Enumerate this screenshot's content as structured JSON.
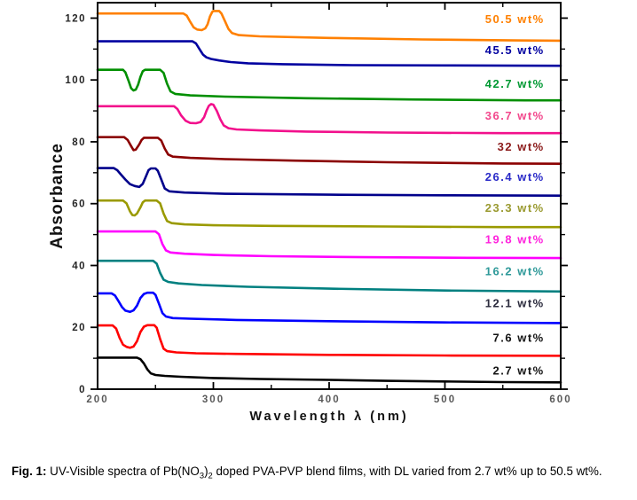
{
  "figure": {
    "caption": {
      "prefix": "Fig. 1:",
      "segments": [
        {
          "text": " UV-Visible spectra of Pb(NO"
        },
        {
          "text": "3",
          "sub": true
        },
        {
          "text": ")"
        },
        {
          "text": "2",
          "sub": true
        },
        {
          "text": " doped PVA-PVP blend films, with DL varied from 2.7 wt% up to 50.5 wt%."
        }
      ]
    }
  },
  "chart_data": {
    "type": "line",
    "title": "",
    "xlabel": "Wavelength λ (nm)",
    "ylabel": "Absorbance",
    "xlim": [
      200,
      600
    ],
    "ylim": [
      0,
      125
    ],
    "grid": false,
    "legend_position": "labels-right-inside",
    "x_ticks_major": [
      200,
      300,
      400,
      500,
      600
    ],
    "x_ticks_minor": [
      250,
      350,
      450,
      550
    ],
    "y_ticks_major": [
      0,
      20,
      40,
      60,
      80,
      100,
      120
    ],
    "y_ticks_minor": [
      10,
      30,
      50,
      70,
      90,
      110
    ],
    "frame_color": "#000000",
    "series": [
      {
        "name": "50.5 wt%",
        "color": "#FF8000",
        "label_color": "#FF8000",
        "label_y": 119.7,
        "points": [
          [
            200,
            121.5
          ],
          [
            274,
            121.5
          ],
          [
            277,
            120.8
          ],
          [
            280,
            118.8
          ],
          [
            283,
            117.0
          ],
          [
            286,
            116.3
          ],
          [
            290,
            116.1
          ],
          [
            293,
            116.7
          ],
          [
            295,
            118.0
          ],
          [
            297,
            120.5
          ],
          [
            299,
            122.0
          ],
          [
            300,
            122.3
          ],
          [
            305,
            122.3
          ],
          [
            307,
            121.5
          ],
          [
            310,
            119.0
          ],
          [
            313,
            116.5
          ],
          [
            316,
            115.2
          ],
          [
            322,
            114.5
          ],
          [
            340,
            114.1
          ],
          [
            400,
            113.6
          ],
          [
            480,
            113.1
          ],
          [
            560,
            112.8
          ],
          [
            600,
            112.7
          ]
        ]
      },
      {
        "name": "45.5 wt%",
        "color": "#0000A0",
        "label_color": "#0000A0",
        "label_y": 109.7,
        "points": [
          [
            200,
            112.5
          ],
          [
            282,
            112.5
          ],
          [
            285,
            111.8
          ],
          [
            288,
            110.0
          ],
          [
            291,
            108.2
          ],
          [
            294,
            107.3
          ],
          [
            298,
            106.8
          ],
          [
            305,
            106.3
          ],
          [
            315,
            105.8
          ],
          [
            330,
            105.4
          ],
          [
            360,
            105.1
          ],
          [
            420,
            104.8
          ],
          [
            500,
            104.7
          ],
          [
            600,
            104.6
          ]
        ]
      },
      {
        "name": "42.7 wt%",
        "color": "#008F00",
        "label_color": "#009933",
        "label_y": 98.8,
        "points": [
          [
            200,
            103.3
          ],
          [
            222,
            103.3
          ],
          [
            224,
            102.5
          ],
          [
            227,
            99.5
          ],
          [
            229,
            97.3
          ],
          [
            231,
            96.6
          ],
          [
            233,
            96.9
          ],
          [
            235,
            98.5
          ],
          [
            237,
            101.0
          ],
          [
            239,
            102.8
          ],
          [
            241,
            103.3
          ],
          [
            254,
            103.3
          ],
          [
            257,
            102.3
          ],
          [
            260,
            98.8
          ],
          [
            263,
            96.3
          ],
          [
            267,
            95.5
          ],
          [
            280,
            95.0
          ],
          [
            310,
            94.6
          ],
          [
            380,
            94.1
          ],
          [
            470,
            93.7
          ],
          [
            570,
            93.4
          ],
          [
            600,
            93.4
          ]
        ]
      },
      {
        "name": "36.7 wt%",
        "color": "#F2108C",
        "label_color": "#F2478C",
        "label_y": 88.4,
        "points": [
          [
            200,
            91.5
          ],
          [
            266,
            91.5
          ],
          [
            269,
            90.6
          ],
          [
            272,
            88.6
          ],
          [
            276,
            86.8
          ],
          [
            280,
            86.1
          ],
          [
            285,
            86.0
          ],
          [
            289,
            86.4
          ],
          [
            292,
            88.0
          ],
          [
            294,
            90.0
          ],
          [
            296,
            91.6
          ],
          [
            298,
            92.2
          ],
          [
            300,
            92.0
          ],
          [
            303,
            90.0
          ],
          [
            306,
            87.3
          ],
          [
            309,
            85.3
          ],
          [
            313,
            84.4
          ],
          [
            320,
            84.0
          ],
          [
            340,
            83.7
          ],
          [
            380,
            83.3
          ],
          [
            450,
            83.0
          ],
          [
            550,
            82.8
          ],
          [
            600,
            82.8
          ]
        ]
      },
      {
        "name": "32 wt%",
        "color": "#8B0000",
        "label_color": "#8B1A1A",
        "label_y": 78.4,
        "points": [
          [
            200,
            81.5
          ],
          [
            223,
            81.5
          ],
          [
            226,
            80.6
          ],
          [
            229,
            78.6
          ],
          [
            231,
            77.3
          ],
          [
            233,
            77.5
          ],
          [
            236,
            79.2
          ],
          [
            238,
            80.6
          ],
          [
            240,
            81.3
          ],
          [
            252,
            81.3
          ],
          [
            255,
            80.4
          ],
          [
            258,
            77.8
          ],
          [
            261,
            75.9
          ],
          [
            265,
            75.2
          ],
          [
            280,
            74.8
          ],
          [
            310,
            74.4
          ],
          [
            370,
            73.9
          ],
          [
            450,
            73.4
          ],
          [
            550,
            73.0
          ],
          [
            600,
            72.9
          ]
        ]
      },
      {
        "name": "26.4 wt%",
        "color": "#00008B",
        "label_color": "#2A2AC8",
        "label_y": 68.6,
        "points": [
          [
            200,
            71.5
          ],
          [
            214,
            71.5
          ],
          [
            217,
            70.8
          ],
          [
            220,
            69.5
          ],
          [
            224,
            67.8
          ],
          [
            228,
            66.3
          ],
          [
            232,
            65.7
          ],
          [
            236,
            65.4
          ],
          [
            239,
            66.4
          ],
          [
            242,
            69.0
          ],
          [
            244,
            70.8
          ],
          [
            246,
            71.4
          ],
          [
            250,
            71.4
          ],
          [
            252,
            70.6
          ],
          [
            255,
            67.8
          ],
          [
            258,
            64.9
          ],
          [
            262,
            64.0
          ],
          [
            275,
            63.6
          ],
          [
            310,
            63.2
          ],
          [
            400,
            62.9
          ],
          [
            500,
            62.7
          ],
          [
            600,
            62.6
          ]
        ]
      },
      {
        "name": "23.3 wt%",
        "color": "#9A9A00",
        "label_color": "#9A9A30",
        "label_y": 58.6,
        "points": [
          [
            200,
            61.0
          ],
          [
            222,
            61.0
          ],
          [
            225,
            60.1
          ],
          [
            228,
            57.5
          ],
          [
            230,
            56.3
          ],
          [
            232,
            56.2
          ],
          [
            234,
            56.8
          ],
          [
            237,
            58.8
          ],
          [
            239,
            60.4
          ],
          [
            241,
            61.0
          ],
          [
            251,
            61.0
          ],
          [
            254,
            60.1
          ],
          [
            257,
            56.8
          ],
          [
            260,
            54.4
          ],
          [
            264,
            53.7
          ],
          [
            275,
            53.3
          ],
          [
            300,
            53.0
          ],
          [
            350,
            52.8
          ],
          [
            450,
            52.6
          ],
          [
            550,
            52.4
          ],
          [
            600,
            52.4
          ]
        ]
      },
      {
        "name": "19.8 wt%",
        "color": "#FF00FF",
        "label_color": "#FF22DD",
        "label_y": 48.5,
        "points": [
          [
            200,
            51.0
          ],
          [
            250,
            51.0
          ],
          [
            253,
            50.1
          ],
          [
            256,
            46.9
          ],
          [
            259,
            44.9
          ],
          [
            263,
            44.2
          ],
          [
            275,
            43.8
          ],
          [
            300,
            43.4
          ],
          [
            350,
            43.0
          ],
          [
            430,
            42.7
          ],
          [
            520,
            42.5
          ],
          [
            600,
            42.4
          ]
        ]
      },
      {
        "name": "16.2 wt%",
        "color": "#008080",
        "label_color": "#2E9999",
        "label_y": 38.2,
        "points": [
          [
            200,
            41.5
          ],
          [
            248,
            41.5
          ],
          [
            251,
            40.6
          ],
          [
            254,
            37.6
          ],
          [
            257,
            35.4
          ],
          [
            261,
            34.7
          ],
          [
            270,
            34.2
          ],
          [
            290,
            33.7
          ],
          [
            330,
            33.1
          ],
          [
            400,
            32.5
          ],
          [
            500,
            31.9
          ],
          [
            600,
            31.6
          ]
        ]
      },
      {
        "name": "12.1 wt%",
        "color": "#0000FF",
        "label_color": "#2B2B3D",
        "label_y": 27.8,
        "points": [
          [
            200,
            31.0
          ],
          [
            212,
            31.0
          ],
          [
            215,
            30.3
          ],
          [
            218,
            28.5
          ],
          [
            221,
            26.6
          ],
          [
            224,
            25.4
          ],
          [
            228,
            25.0
          ],
          [
            231,
            25.5
          ],
          [
            234,
            27.0
          ],
          [
            237,
            29.5
          ],
          [
            240,
            30.8
          ],
          [
            243,
            31.2
          ],
          [
            248,
            31.2
          ],
          [
            250,
            30.5
          ],
          [
            253,
            27.6
          ],
          [
            256,
            24.6
          ],
          [
            259,
            23.5
          ],
          [
            265,
            23.0
          ],
          [
            280,
            22.8
          ],
          [
            320,
            22.4
          ],
          [
            400,
            22.0
          ],
          [
            500,
            21.6
          ],
          [
            600,
            21.4
          ]
        ]
      },
      {
        "name": "7.6 wt%",
        "color": "#FF0000",
        "label_color": "#141414",
        "label_y": 16.7,
        "points": [
          [
            200,
            20.6
          ],
          [
            213,
            20.6
          ],
          [
            216,
            19.6
          ],
          [
            219,
            16.6
          ],
          [
            222,
            14.4
          ],
          [
            225,
            13.7
          ],
          [
            228,
            13.4
          ],
          [
            231,
            13.8
          ],
          [
            234,
            15.5
          ],
          [
            237,
            18.5
          ],
          [
            240,
            20.2
          ],
          [
            243,
            20.7
          ],
          [
            249,
            20.7
          ],
          [
            251,
            19.9
          ],
          [
            254,
            16.2
          ],
          [
            257,
            13.1
          ],
          [
            260,
            12.3
          ],
          [
            268,
            11.9
          ],
          [
            285,
            11.6
          ],
          [
            320,
            11.4
          ],
          [
            400,
            11.1
          ],
          [
            500,
            10.9
          ],
          [
            600,
            10.8
          ]
        ]
      },
      {
        "name": "2.7 wt%",
        "color": "#000000",
        "label_color": "#141414",
        "label_y": 6.0,
        "points": [
          [
            200,
            10.2
          ],
          [
            234,
            10.2
          ],
          [
            237,
            9.7
          ],
          [
            240,
            8.3
          ],
          [
            243,
            6.4
          ],
          [
            246,
            5.1
          ],
          [
            250,
            4.6
          ],
          [
            258,
            4.3
          ],
          [
            272,
            4.0
          ],
          [
            300,
            3.6
          ],
          [
            340,
            3.3
          ],
          [
            400,
            3.0
          ],
          [
            450,
            2.7
          ],
          [
            500,
            2.5
          ],
          [
            550,
            2.3
          ],
          [
            600,
            2.2
          ]
        ]
      }
    ]
  }
}
